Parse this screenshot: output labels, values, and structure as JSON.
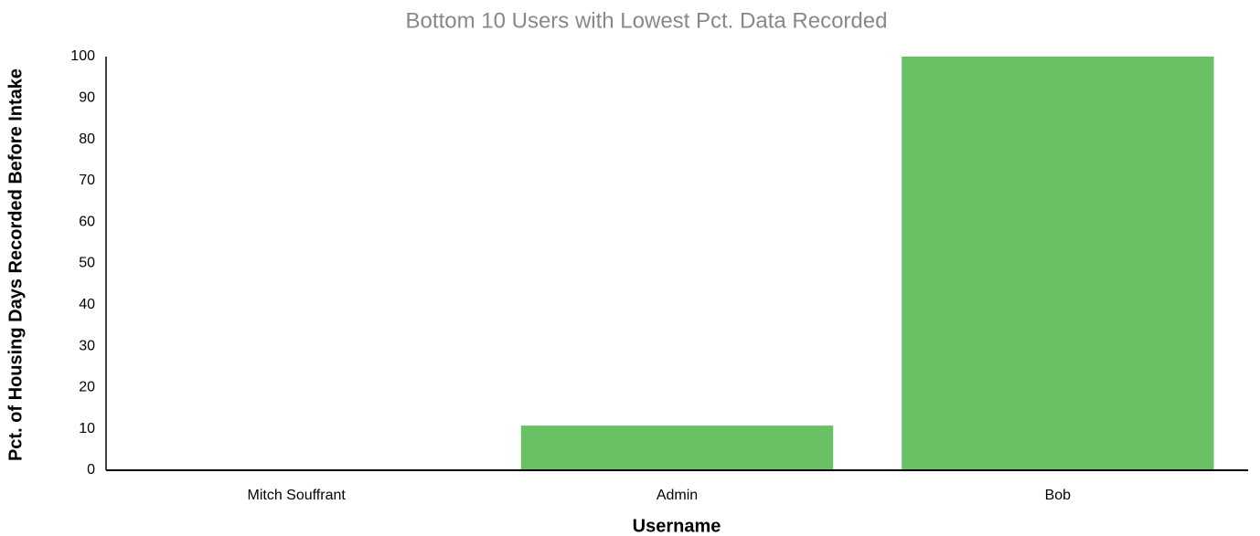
{
  "chart_data": {
    "type": "bar",
    "title": "Bottom 10 Users with Lowest Pct. Data Recorded",
    "x_label": "Username",
    "y_label": "Pct. of Housing Days Recorded Before Intake",
    "categories": [
      "Mitch Souffrant",
      "Admin",
      "Bob"
    ],
    "values": [
      0,
      10.8,
      100
    ],
    "color": "#6ac165",
    "ylim": [
      0,
      100
    ],
    "yticks": [
      0,
      10,
      20,
      30,
      40,
      50,
      60,
      70,
      80,
      90,
      100
    ],
    "grid": false
  }
}
